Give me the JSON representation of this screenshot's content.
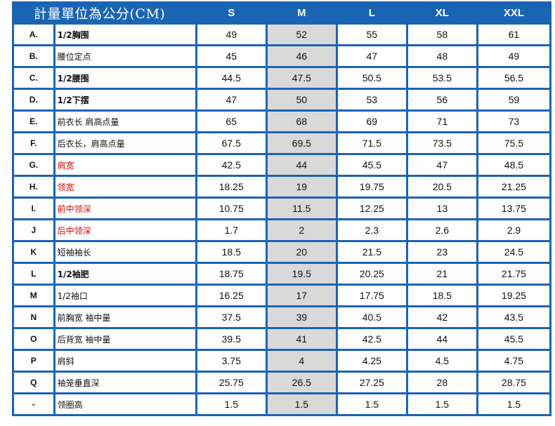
{
  "table": {
    "title": "計量單位為公分(CM)",
    "size_headers": [
      "S",
      "M",
      "L",
      "XL",
      "XXL"
    ],
    "rows": [
      {
        "code": "A.",
        "label": "1/2胸围",
        "values": [
          "49",
          "52",
          "55",
          "58",
          "61"
        ]
      },
      {
        "code": "B.",
        "label": "腰位定点",
        "values": [
          "45",
          "46",
          "47",
          "48",
          "49"
        ]
      },
      {
        "code": "C.",
        "label": "1/2腰围",
        "values": [
          "44.5",
          "47.5",
          "50.5",
          "53.5",
          "56.5"
        ]
      },
      {
        "code": "D.",
        "label": "1/2下摆",
        "values": [
          "47",
          "50",
          "53",
          "56",
          "59"
        ]
      },
      {
        "code": "E.",
        "label": "前衣长  肩高点量",
        "values": [
          "65",
          "68",
          "69",
          "71",
          "73"
        ]
      },
      {
        "code": "F.",
        "label": "后衣长，肩高点量",
        "values": [
          "67.5",
          "69.5",
          "71.5",
          "73.5",
          "75.5"
        ]
      },
      {
        "code": "G.",
        "label": "肩宽",
        "values": [
          "42.5",
          "44",
          "45.5",
          "47",
          "48.5"
        ]
      },
      {
        "code": "H.",
        "label": "领宽",
        "values": [
          "18.25",
          "19",
          "19.75",
          "20.5",
          "21.25"
        ]
      },
      {
        "code": "I.",
        "label": "前中领深",
        "values": [
          "10.75",
          "11.5",
          "12.25",
          "13",
          "13.75"
        ]
      },
      {
        "code": "J",
        "label": "后中领深",
        "values": [
          "1.7",
          "2",
          "2.3",
          "2.6",
          "2.9"
        ]
      },
      {
        "code": "K",
        "label": "短袖袖长",
        "values": [
          "18.5",
          "20",
          "21.5",
          "23",
          "24.5"
        ]
      },
      {
        "code": "L",
        "label": "1/2袖肥",
        "values": [
          "18.75",
          "19.5",
          "20.25",
          "21",
          "21.75"
        ]
      },
      {
        "code": "M",
        "label": "1/2袖口",
        "values": [
          "16.25",
          "17",
          "17.75",
          "18.5",
          "19.25"
        ]
      },
      {
        "code": "N",
        "label": "前胸宽  袖中量",
        "values": [
          "37.5",
          "39",
          "40.5",
          "42",
          "43.5"
        ]
      },
      {
        "code": "O",
        "label": "后背宽  袖中量",
        "values": [
          "39.5",
          "41",
          "42.5",
          "44",
          "45.5"
        ]
      },
      {
        "code": "P",
        "label": "肩斜",
        "values": [
          "3.75",
          "4",
          "4.25",
          "4.5",
          "4.75"
        ]
      },
      {
        "code": "Q",
        "label": "袖笼垂直深",
        "values": [
          "25.75",
          "26.5",
          "27.25",
          "28",
          "28.75"
        ]
      },
      {
        "code": "-",
        "label": "领圈高",
        "values": [
          "1.5",
          "1.5",
          "1.5",
          "1.5",
          "1.5"
        ]
      }
    ]
  },
  "colors": {
    "grid_blue": "#1a64b4",
    "highlight_column": "#d9d9d9",
    "red_label": "#e00000"
  }
}
